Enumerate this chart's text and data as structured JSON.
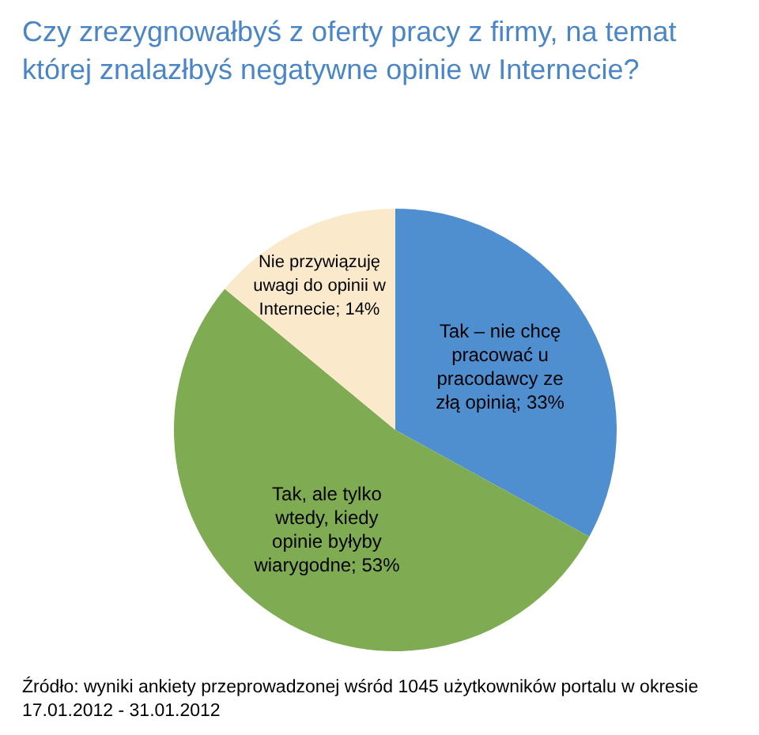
{
  "chart_data": {
    "type": "pie",
    "title": "Czy zrezygnowałbyś z oferty pracy z firmy, na temat której znalazłbyś negatywne opinie w Internecie?",
    "categories": [
      "Tak – nie chcę pracować u pracodawcy ze złą opinią",
      "Tak, ale tylko wtedy, kiedy opinie byłyby wiarygodne",
      "Nie przywiązuję uwagi do opinii w Internecie"
    ],
    "values": [
      33,
      53,
      14
    ],
    "value_labels": [
      "33%",
      "53%",
      "14%"
    ],
    "colors": [
      "#4f8fd0",
      "#7fab52",
      "#fbe9cc"
    ],
    "legend": false,
    "annotations": [
      "Źródło: wyniki ankiety przeprowadzonej wśród 1045 użytkowników portalu w okresie 17.01.2012 - 31.01.2012"
    ]
  }
}
